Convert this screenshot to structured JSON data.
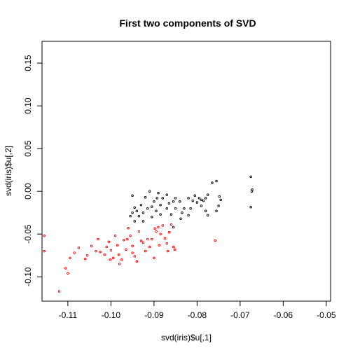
{
  "chart_data": {
    "type": "scatter",
    "title": "First two components of SVD",
    "xlabel": "svd(iris)$u[,1]",
    "ylabel": "svd(iris)$u[,2]",
    "xlim": [
      -0.116,
      -0.049
    ],
    "ylim": [
      -0.1285,
      0.1755
    ],
    "x_ticks": [
      -0.11,
      -0.1,
      -0.09,
      -0.08,
      -0.07,
      -0.06,
      -0.05
    ],
    "x_tick_labels": [
      "-0.11",
      "-0.10",
      "-0.09",
      "-0.08",
      "-0.07",
      "-0.06",
      "-0.05"
    ],
    "y_ticks": [
      -0.1,
      -0.05,
      0.0,
      0.05,
      0.1,
      0.15
    ],
    "y_tick_labels": [
      "-0.10",
      "-0.05",
      "0.00",
      "0.05",
      "0.10",
      "0.15"
    ],
    "grid": false,
    "legend": "none",
    "series": [
      {
        "color": "#000000",
        "points": [
          [
            -0.0675,
            0.017
          ],
          [
            -0.0672,
            0.002
          ],
          [
            -0.0673,
            0.0
          ],
          [
            -0.0675,
            -0.0185
          ],
          [
            -0.0755,
            0.012
          ],
          [
            -0.0765,
            0.01
          ],
          [
            -0.0748,
            -0.006
          ],
          [
            -0.0745,
            -0.01
          ],
          [
            -0.075,
            -0.017
          ],
          [
            -0.0755,
            -0.023
          ],
          [
            -0.0775,
            -0.004
          ],
          [
            -0.078,
            -0.008
          ],
          [
            -0.0785,
            -0.011
          ],
          [
            -0.079,
            -0.01
          ],
          [
            -0.0795,
            -0.008
          ],
          [
            -0.08,
            -0.013
          ],
          [
            -0.079,
            -0.017
          ],
          [
            -0.078,
            -0.023
          ],
          [
            -0.0775,
            -0.028
          ],
          [
            -0.0805,
            -0.005
          ],
          [
            -0.081,
            -0.011
          ],
          [
            -0.0815,
            -0.02
          ],
          [
            -0.082,
            -0.008
          ],
          [
            -0.082,
            -0.028
          ],
          [
            -0.083,
            -0.02
          ],
          [
            -0.0835,
            -0.025
          ],
          [
            -0.084,
            -0.012
          ],
          [
            -0.0838,
            -0.032
          ],
          [
            -0.085,
            -0.008
          ],
          [
            -0.085,
            -0.02
          ],
          [
            -0.0855,
            -0.012
          ],
          [
            -0.086,
            -0.027
          ],
          [
            -0.0865,
            -0.014
          ],
          [
            -0.087,
            -0.004
          ],
          [
            -0.087,
            -0.02
          ],
          [
            -0.088,
            -0.008
          ],
          [
            -0.0885,
            -0.016
          ],
          [
            -0.0885,
            -0.027
          ],
          [
            -0.089,
            -0.002
          ],
          [
            -0.0893,
            -0.008
          ],
          [
            -0.0895,
            -0.023
          ],
          [
            -0.09,
            -0.012
          ],
          [
            -0.0905,
            -0.018
          ],
          [
            -0.0905,
            -0.03
          ],
          [
            -0.091,
            0.0
          ],
          [
            -0.0915,
            -0.02
          ],
          [
            -0.092,
            -0.007
          ],
          [
            -0.0925,
            -0.025
          ],
          [
            -0.0925,
            -0.035
          ],
          [
            -0.093,
            -0.016
          ],
          [
            -0.0935,
            -0.029
          ],
          [
            -0.094,
            -0.023
          ],
          [
            -0.0945,
            -0.019
          ],
          [
            -0.095,
            -0.005
          ],
          [
            -0.095,
            -0.025
          ],
          [
            -0.0955,
            -0.029
          ],
          [
            -0.0945,
            -0.035
          ],
          [
            -0.0855,
            -0.042
          ]
        ]
      },
      {
        "color": "#ff0000",
        "points": [
          [
            -0.1155,
            -0.052
          ],
          [
            -0.1155,
            -0.07
          ],
          [
            -0.112,
            -0.117
          ],
          [
            -0.1105,
            -0.09
          ],
          [
            -0.11,
            -0.096
          ],
          [
            -0.1095,
            -0.078
          ],
          [
            -0.1085,
            -0.072
          ],
          [
            -0.1075,
            -0.066
          ],
          [
            -0.106,
            -0.079
          ],
          [
            -0.1055,
            -0.075
          ],
          [
            -0.1045,
            -0.064
          ],
          [
            -0.1035,
            -0.07
          ],
          [
            -0.103,
            -0.056
          ],
          [
            -0.1025,
            -0.071
          ],
          [
            -0.1015,
            -0.074
          ],
          [
            -0.101,
            -0.065
          ],
          [
            -0.1005,
            -0.059
          ],
          [
            -0.1,
            -0.069
          ],
          [
            -0.0995,
            -0.078
          ],
          [
            -0.099,
            -0.052
          ],
          [
            -0.0985,
            -0.063
          ],
          [
            -0.098,
            -0.085
          ],
          [
            -0.0975,
            -0.08
          ],
          [
            -0.097,
            -0.057
          ],
          [
            -0.0965,
            -0.068
          ],
          [
            -0.096,
            -0.043
          ],
          [
            -0.0955,
            -0.052
          ],
          [
            -0.095,
            -0.064
          ],
          [
            -0.0945,
            -0.076
          ],
          [
            -0.094,
            -0.082
          ],
          [
            -0.0935,
            -0.047
          ],
          [
            -0.093,
            -0.058
          ],
          [
            -0.0925,
            -0.06
          ],
          [
            -0.092,
            -0.07
          ],
          [
            -0.0915,
            -0.056
          ],
          [
            -0.091,
            -0.065
          ],
          [
            -0.0905,
            -0.056
          ],
          [
            -0.09,
            -0.078
          ],
          [
            -0.0895,
            -0.047
          ],
          [
            -0.089,
            -0.042
          ],
          [
            -0.0888,
            -0.063
          ],
          [
            -0.0885,
            -0.05
          ],
          [
            -0.088,
            -0.04
          ],
          [
            -0.0875,
            -0.055
          ],
          [
            -0.087,
            -0.061
          ],
          [
            -0.0868,
            -0.07
          ],
          [
            -0.0865,
            -0.048
          ],
          [
            -0.086,
            -0.039
          ],
          [
            -0.0855,
            -0.065
          ],
          [
            -0.0852,
            -0.068
          ],
          [
            -0.095,
            -0.072
          ],
          [
            -0.0962,
            -0.056
          ],
          [
            -0.1002,
            -0.08
          ],
          [
            -0.0982,
            -0.074
          ],
          [
            -0.0758,
            -0.0575
          ],
          [
            -0.0898,
            -0.0435
          ]
        ]
      }
    ]
  }
}
